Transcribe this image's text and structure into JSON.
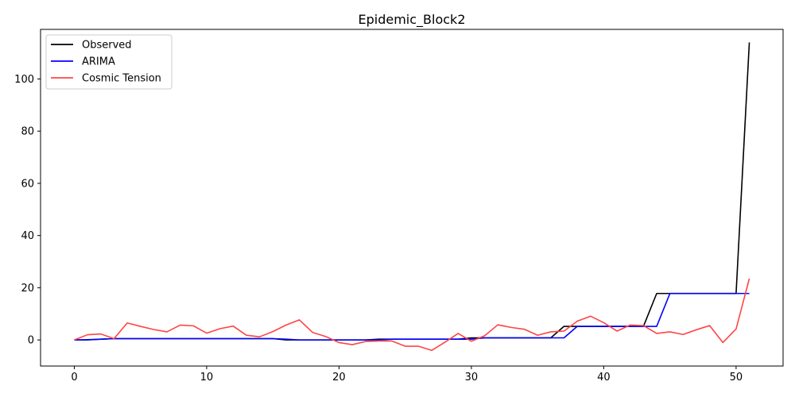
{
  "chart_data": {
    "type": "line",
    "title": "Epidemic_Block2",
    "xlabel": "",
    "ylabel": "",
    "xlim": [
      -2.55,
      53.55
    ],
    "ylim": [
      -10,
      119
    ],
    "xticks": [
      0,
      10,
      20,
      30,
      40,
      50
    ],
    "yticks": [
      0,
      20,
      40,
      60,
      80,
      100
    ],
    "grid": false,
    "legend_position": "top-left",
    "x": [
      0,
      1,
      2,
      3,
      4,
      5,
      6,
      7,
      8,
      9,
      10,
      11,
      12,
      13,
      14,
      15,
      16,
      17,
      18,
      19,
      20,
      21,
      22,
      23,
      24,
      25,
      26,
      27,
      28,
      29,
      30,
      31,
      32,
      33,
      34,
      35,
      36,
      37,
      38,
      39,
      40,
      41,
      42,
      43,
      44,
      45,
      46,
      47,
      48,
      49,
      50,
      51
    ],
    "series": [
      {
        "name": "Observed",
        "color": "#000000",
        "values": [
          0,
          0,
          0.3,
          0.5,
          0.5,
          0.5,
          0.5,
          0.5,
          0.5,
          0.5,
          0.5,
          0.5,
          0.5,
          0.5,
          0.5,
          0.5,
          0,
          0,
          0,
          0,
          0,
          0,
          0,
          0.3,
          0.3,
          0.3,
          0.3,
          0.3,
          0.3,
          0.3,
          0.8,
          0.8,
          0.8,
          0.8,
          0.8,
          0.8,
          0.8,
          5.2,
          5.2,
          5.2,
          5.2,
          5.2,
          5.2,
          5.2,
          17.8,
          17.8,
          17.8,
          17.8,
          17.8,
          17.8,
          17.8,
          114
        ]
      },
      {
        "name": "ARIMA",
        "color": "#0000ff",
        "values": [
          0,
          0.1,
          0.3,
          0.5,
          0.5,
          0.5,
          0.5,
          0.5,
          0.5,
          0.5,
          0.5,
          0.5,
          0.5,
          0.5,
          0.5,
          0.5,
          0.3,
          0,
          0,
          0,
          0,
          0,
          0,
          0,
          0.3,
          0.3,
          0.3,
          0.3,
          0.3,
          0.3,
          0.3,
          0.8,
          0.8,
          0.8,
          0.8,
          0.8,
          0.8,
          0.8,
          5.2,
          5.2,
          5.2,
          5.2,
          5.2,
          5.2,
          5.2,
          17.8,
          17.8,
          17.8,
          17.8,
          17.8,
          17.8,
          17.8
        ]
      },
      {
        "name": "Cosmic Tension",
        "color": "#ff4444",
        "values": [
          0,
          2,
          2.3,
          0.5,
          6.5,
          5.2,
          4,
          3.1,
          5.7,
          5.4,
          2.6,
          4.3,
          5.3,
          1.8,
          1.2,
          3.2,
          5.7,
          7.7,
          2.9,
          1.3,
          -1,
          -1.8,
          -0.6,
          -0.4,
          -0.4,
          -2.4,
          -2.4,
          -4,
          -0.9,
          2.5,
          -0.5,
          1.6,
          5.8,
          4.8,
          4.1,
          1.8,
          3.1,
          3.4,
          7.2,
          9.1,
          6.6,
          3.4,
          5.7,
          5.5,
          2.5,
          3.1,
          2.1,
          3.9,
          5.5,
          -1,
          4.2,
          23.5
        ]
      }
    ]
  }
}
